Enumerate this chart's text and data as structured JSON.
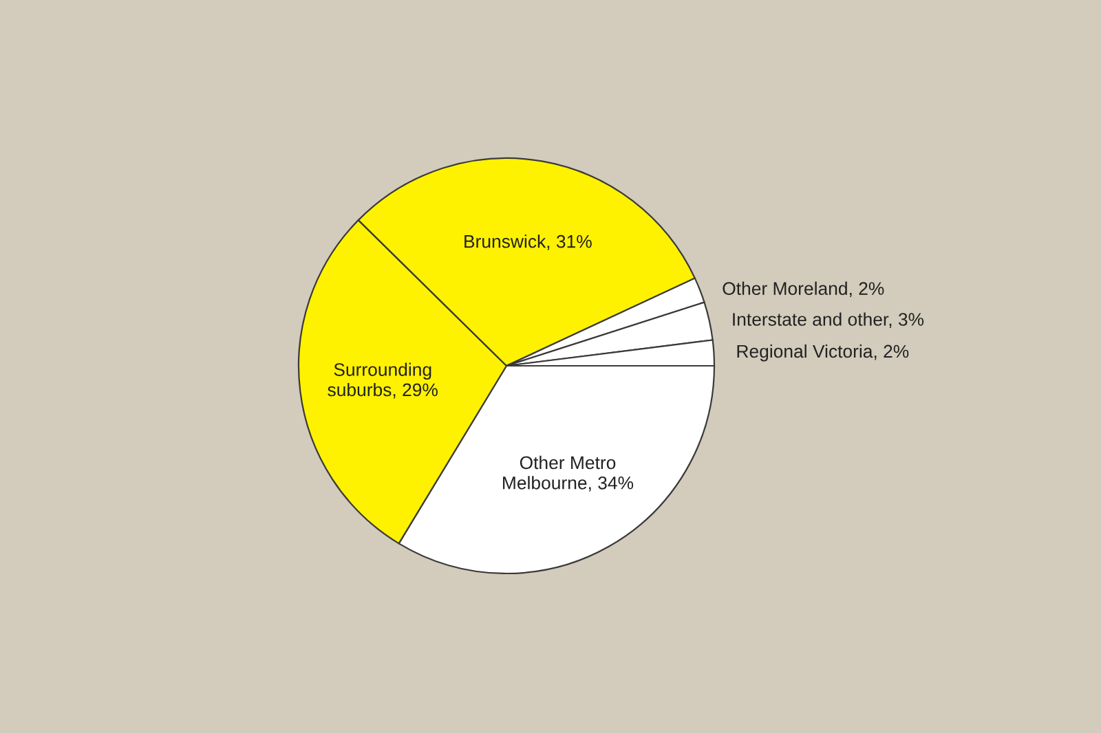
{
  "chart_data": {
    "type": "pie",
    "categories": [
      "Other Metro\nMelbourne",
      "Surrounding\nsuburbs",
      "Brunswick",
      "Other Moreland",
      "Interstate and other",
      "Regional Victoria"
    ],
    "values": [
      34,
      29,
      31,
      2,
      3,
      2
    ],
    "value_labels": [
      "34%",
      "29%",
      "31%",
      "2%",
      "3%",
      "2%"
    ],
    "colors": [
      "#ffffff",
      "#fff200",
      "#fff200",
      "#ffffff",
      "#ffffff",
      "#ffffff"
    ]
  }
}
